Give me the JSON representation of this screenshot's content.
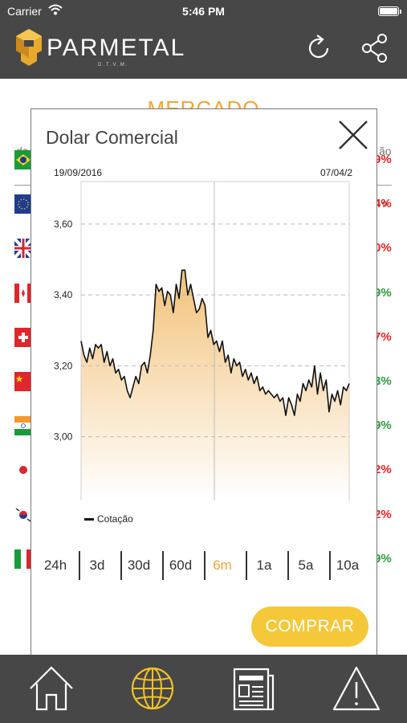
{
  "status_bar": {
    "carrier": "Carrier",
    "time": "5:46 PM"
  },
  "header": {
    "brand": "PARMETAL",
    "brand_sub": "D.T.V.M."
  },
  "background": {
    "section_title": "MERCADO",
    "col_left_fragment": "da",
    "col_right_fragment": "ão",
    "head_right_fragment": "o",
    "rows": [
      {
        "flag": "brazil-flag",
        "change": "9%",
        "color": "#e32020"
      },
      {
        "flag": "eu-flag",
        "change": "4%",
        "color": "#e32020"
      },
      {
        "flag": "uk-flag",
        "change": "0%",
        "color": "#e32020"
      },
      {
        "flag": "canada-flag",
        "change": "9%",
        "color": "#2a9a3a"
      },
      {
        "flag": "switzerland-flag",
        "change": "7%",
        "color": "#e32020"
      },
      {
        "flag": "china-flag",
        "change": "3%",
        "color": "#2a9a3a"
      },
      {
        "flag": "india-flag",
        "change": "9%",
        "color": "#2a9a3a"
      },
      {
        "flag": "japan-flag",
        "change": "2%",
        "color": "#e32020"
      },
      {
        "flag": "korea-flag",
        "change": "2%",
        "color": "#e32020"
      },
      {
        "flag": "mexico-flag",
        "change": "9%",
        "color": "#2a9a3a"
      }
    ]
  },
  "modal": {
    "title": "Dolar Comercial",
    "date_start": "19/09/2016",
    "date_end": "07/04/2",
    "legend_label": "Cotação",
    "buy_label": "COMPRAR",
    "ranges": [
      {
        "label": "24h",
        "active": false
      },
      {
        "label": "3d",
        "active": false
      },
      {
        "label": "30d",
        "active": false
      },
      {
        "label": "60d",
        "active": false
      },
      {
        "label": "6m",
        "active": true
      },
      {
        "label": "1a",
        "active": false
      },
      {
        "label": "5a",
        "active": false
      },
      {
        "label": "10a",
        "active": false
      }
    ]
  },
  "chart_data": {
    "type": "area",
    "title": "Dolar Comercial",
    "series": [
      {
        "name": "Cotação",
        "values": [
          3.27,
          3.23,
          3.21,
          3.25,
          3.22,
          3.26,
          3.25,
          3.26,
          3.21,
          3.24,
          3.2,
          3.22,
          3.18,
          3.19,
          3.16,
          3.17,
          3.13,
          3.11,
          3.14,
          3.17,
          3.15,
          3.2,
          3.21,
          3.18,
          3.23,
          3.3,
          3.43,
          3.41,
          3.42,
          3.37,
          3.41,
          3.4,
          3.35,
          3.43,
          3.39,
          3.47,
          3.47,
          3.4,
          3.43,
          3.39,
          3.35,
          3.36,
          3.39,
          3.37,
          3.28,
          3.3,
          3.26,
          3.27,
          3.24,
          3.27,
          3.21,
          3.23,
          3.18,
          3.22,
          3.2,
          3.21,
          3.17,
          3.19,
          3.16,
          3.18,
          3.15,
          3.17,
          3.13,
          3.14,
          3.12,
          3.13,
          3.12,
          3.11,
          3.12,
          3.1,
          3.11,
          3.06,
          3.11,
          3.09,
          3.06,
          3.12,
          3.1,
          3.15,
          3.13,
          3.16,
          3.14,
          3.2,
          3.12,
          3.18,
          3.13,
          3.16,
          3.07,
          3.12,
          3.1,
          3.13,
          3.09,
          3.14,
          3.13,
          3.15
        ]
      }
    ],
    "x_start_label": "19/09/2016",
    "x_end_label": "07/04/2",
    "yticks": [
      3.0,
      3.2,
      3.4,
      3.6
    ],
    "ytick_labels": [
      "3,00",
      "3,20",
      "3,40",
      "3,60"
    ],
    "ylim": [
      2.82,
      3.72
    ],
    "grid": true,
    "legend_position": "bottom-left",
    "colors": {
      "fill_top": "#f2c27a",
      "fill_bottom": "#ffffff",
      "line": "#111111",
      "accent": "#f2a634"
    }
  }
}
